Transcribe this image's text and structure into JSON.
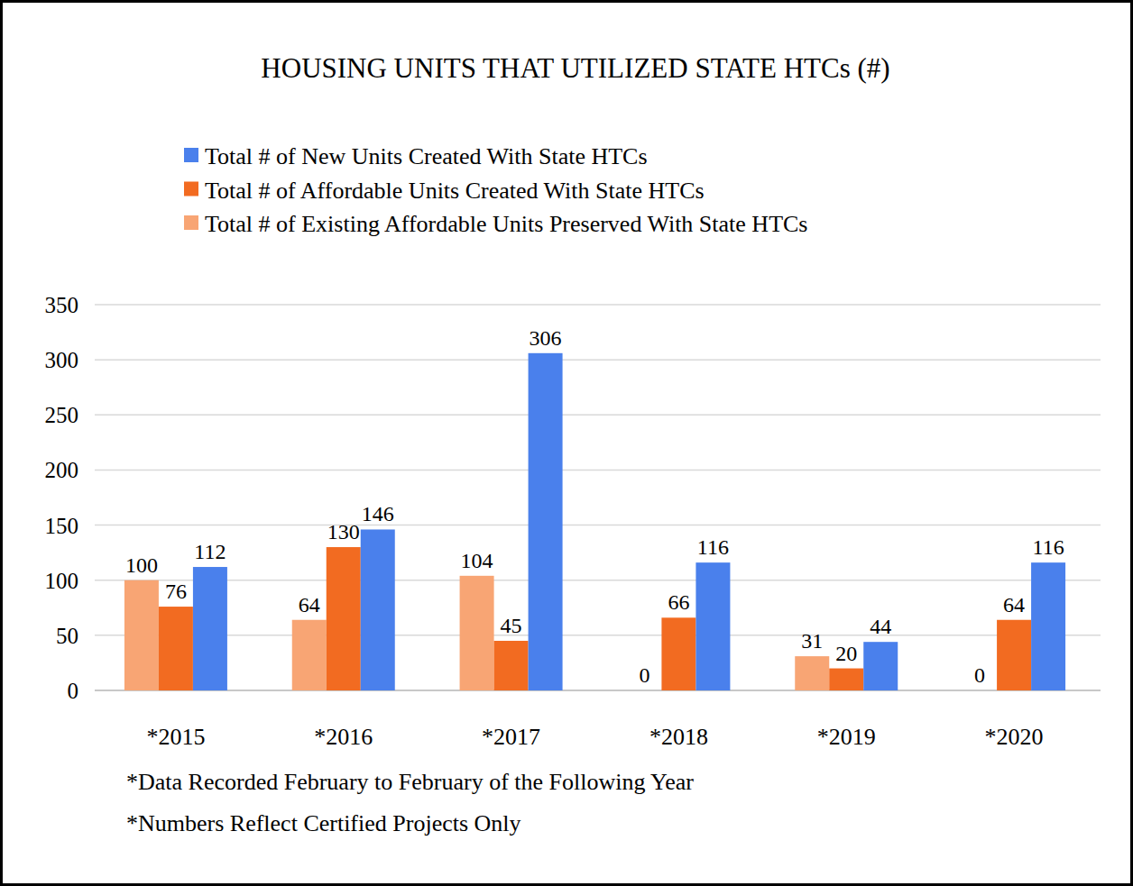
{
  "chart_data": {
    "type": "bar",
    "title": "HOUSING UNITS THAT UTILIZED STATE HTCs (#)",
    "categories": [
      "*2015",
      "*2016",
      "*2017",
      "*2018",
      "*2019",
      "*2020"
    ],
    "series": [
      {
        "name": "Total # of Existing Affordable Units Preserved With State HTCs",
        "color": "#f8a574",
        "values": [
          100,
          64,
          104,
          0,
          31,
          0
        ]
      },
      {
        "name": "Total # of Affordable Units Created With State HTCs",
        "color": "#f26b21",
        "values": [
          76,
          130,
          45,
          66,
          20,
          64
        ]
      },
      {
        "name": "Total # of New Units Created With State HTCs",
        "color": "#4a80ec",
        "values": [
          112,
          146,
          306,
          116,
          44,
          116
        ]
      }
    ],
    "ylim": [
      0,
      350
    ],
    "yticks": [
      0,
      50,
      100,
      150,
      200,
      250,
      300,
      350
    ],
    "grid": true,
    "legend": "top",
    "data_labels": true,
    "annotations": [
      "*Data Recorded February to February of the Following Year",
      "*Numbers Reflect Certified Projects Only"
    ]
  }
}
